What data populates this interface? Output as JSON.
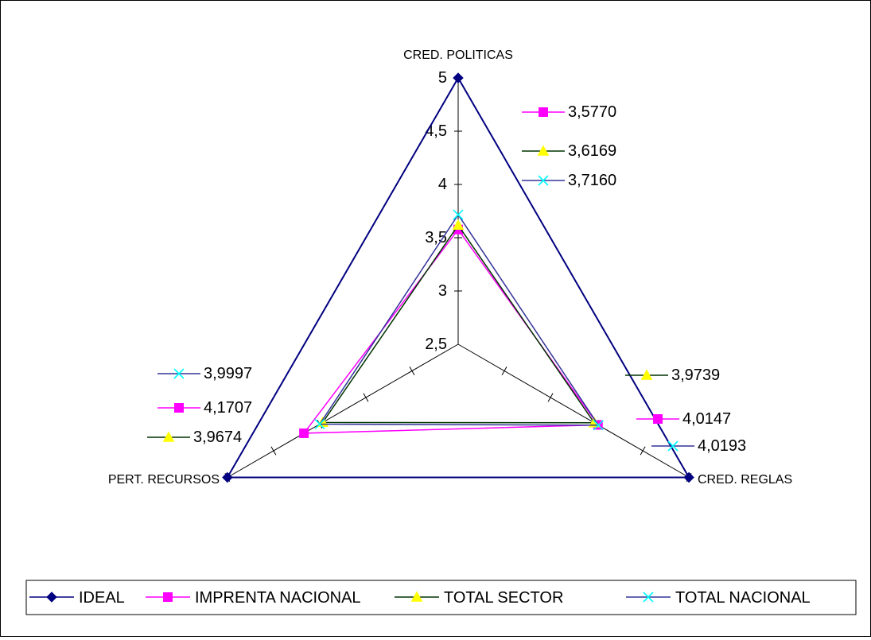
{
  "chart_data": {
    "type": "radar",
    "axes": [
      "CRED.  POLITICAS",
      "CRED.  REGLAS",
      "PERT.  RECURSOS"
    ],
    "rlim": [
      2.5,
      5
    ],
    "ticks": [
      "2,5",
      "3",
      "3,5",
      "4",
      "4,5",
      "5"
    ],
    "tick_values": [
      2.5,
      3,
      3.5,
      4,
      4.5,
      5
    ],
    "grid": false,
    "legend_position": "bottom",
    "series": [
      {
        "name": "IDEAL",
        "color": "#000080",
        "marker": "diamond",
        "values": [
          5,
          5,
          5
        ]
      },
      {
        "name": "IMPRENTA NACIONAL",
        "color": "#ff00ff",
        "marker": "square",
        "values": [
          3.577,
          4.0147,
          4.1707
        ]
      },
      {
        "name": "TOTAL SECTOR",
        "color": "#003300",
        "marker": "triangle",
        "values": [
          3.6169,
          3.9739,
          3.9674
        ]
      },
      {
        "name": "TOTAL NACIONAL",
        "color": "#333399",
        "marker": "x",
        "values": [
          3.716,
          4.0193,
          3.9997
        ]
      }
    ],
    "data_labels": [
      {
        "axis": "CRED.  POLITICAS",
        "series": "IMPRENTA NACIONAL",
        "text": "3,5770"
      },
      {
        "axis": "CRED.  POLITICAS",
        "series": "TOTAL SECTOR",
        "text": "3,6169"
      },
      {
        "axis": "CRED.  POLITICAS",
        "series": "TOTAL NACIONAL",
        "text": "3,7160"
      },
      {
        "axis": "CRED.  REGLAS",
        "series": "TOTAL SECTOR",
        "text": "3,9739"
      },
      {
        "axis": "CRED.  REGLAS",
        "series": "IMPRENTA NACIONAL",
        "text": "4,0147"
      },
      {
        "axis": "CRED.  REGLAS",
        "series": "TOTAL NACIONAL",
        "text": "4,0193"
      },
      {
        "axis": "PERT.  RECURSOS",
        "series": "TOTAL NACIONAL",
        "text": "3,9997"
      },
      {
        "axis": "PERT.  RECURSOS",
        "series": "IMPRENTA NACIONAL",
        "text": "4,1707"
      },
      {
        "axis": "PERT.  RECURSOS",
        "series": "TOTAL SECTOR",
        "text": "3,9674"
      }
    ],
    "marker_fills": {
      "diamond": "#000080",
      "square": "#ff00ff",
      "triangle": "#ffff00",
      "x": "#00ffff"
    }
  }
}
